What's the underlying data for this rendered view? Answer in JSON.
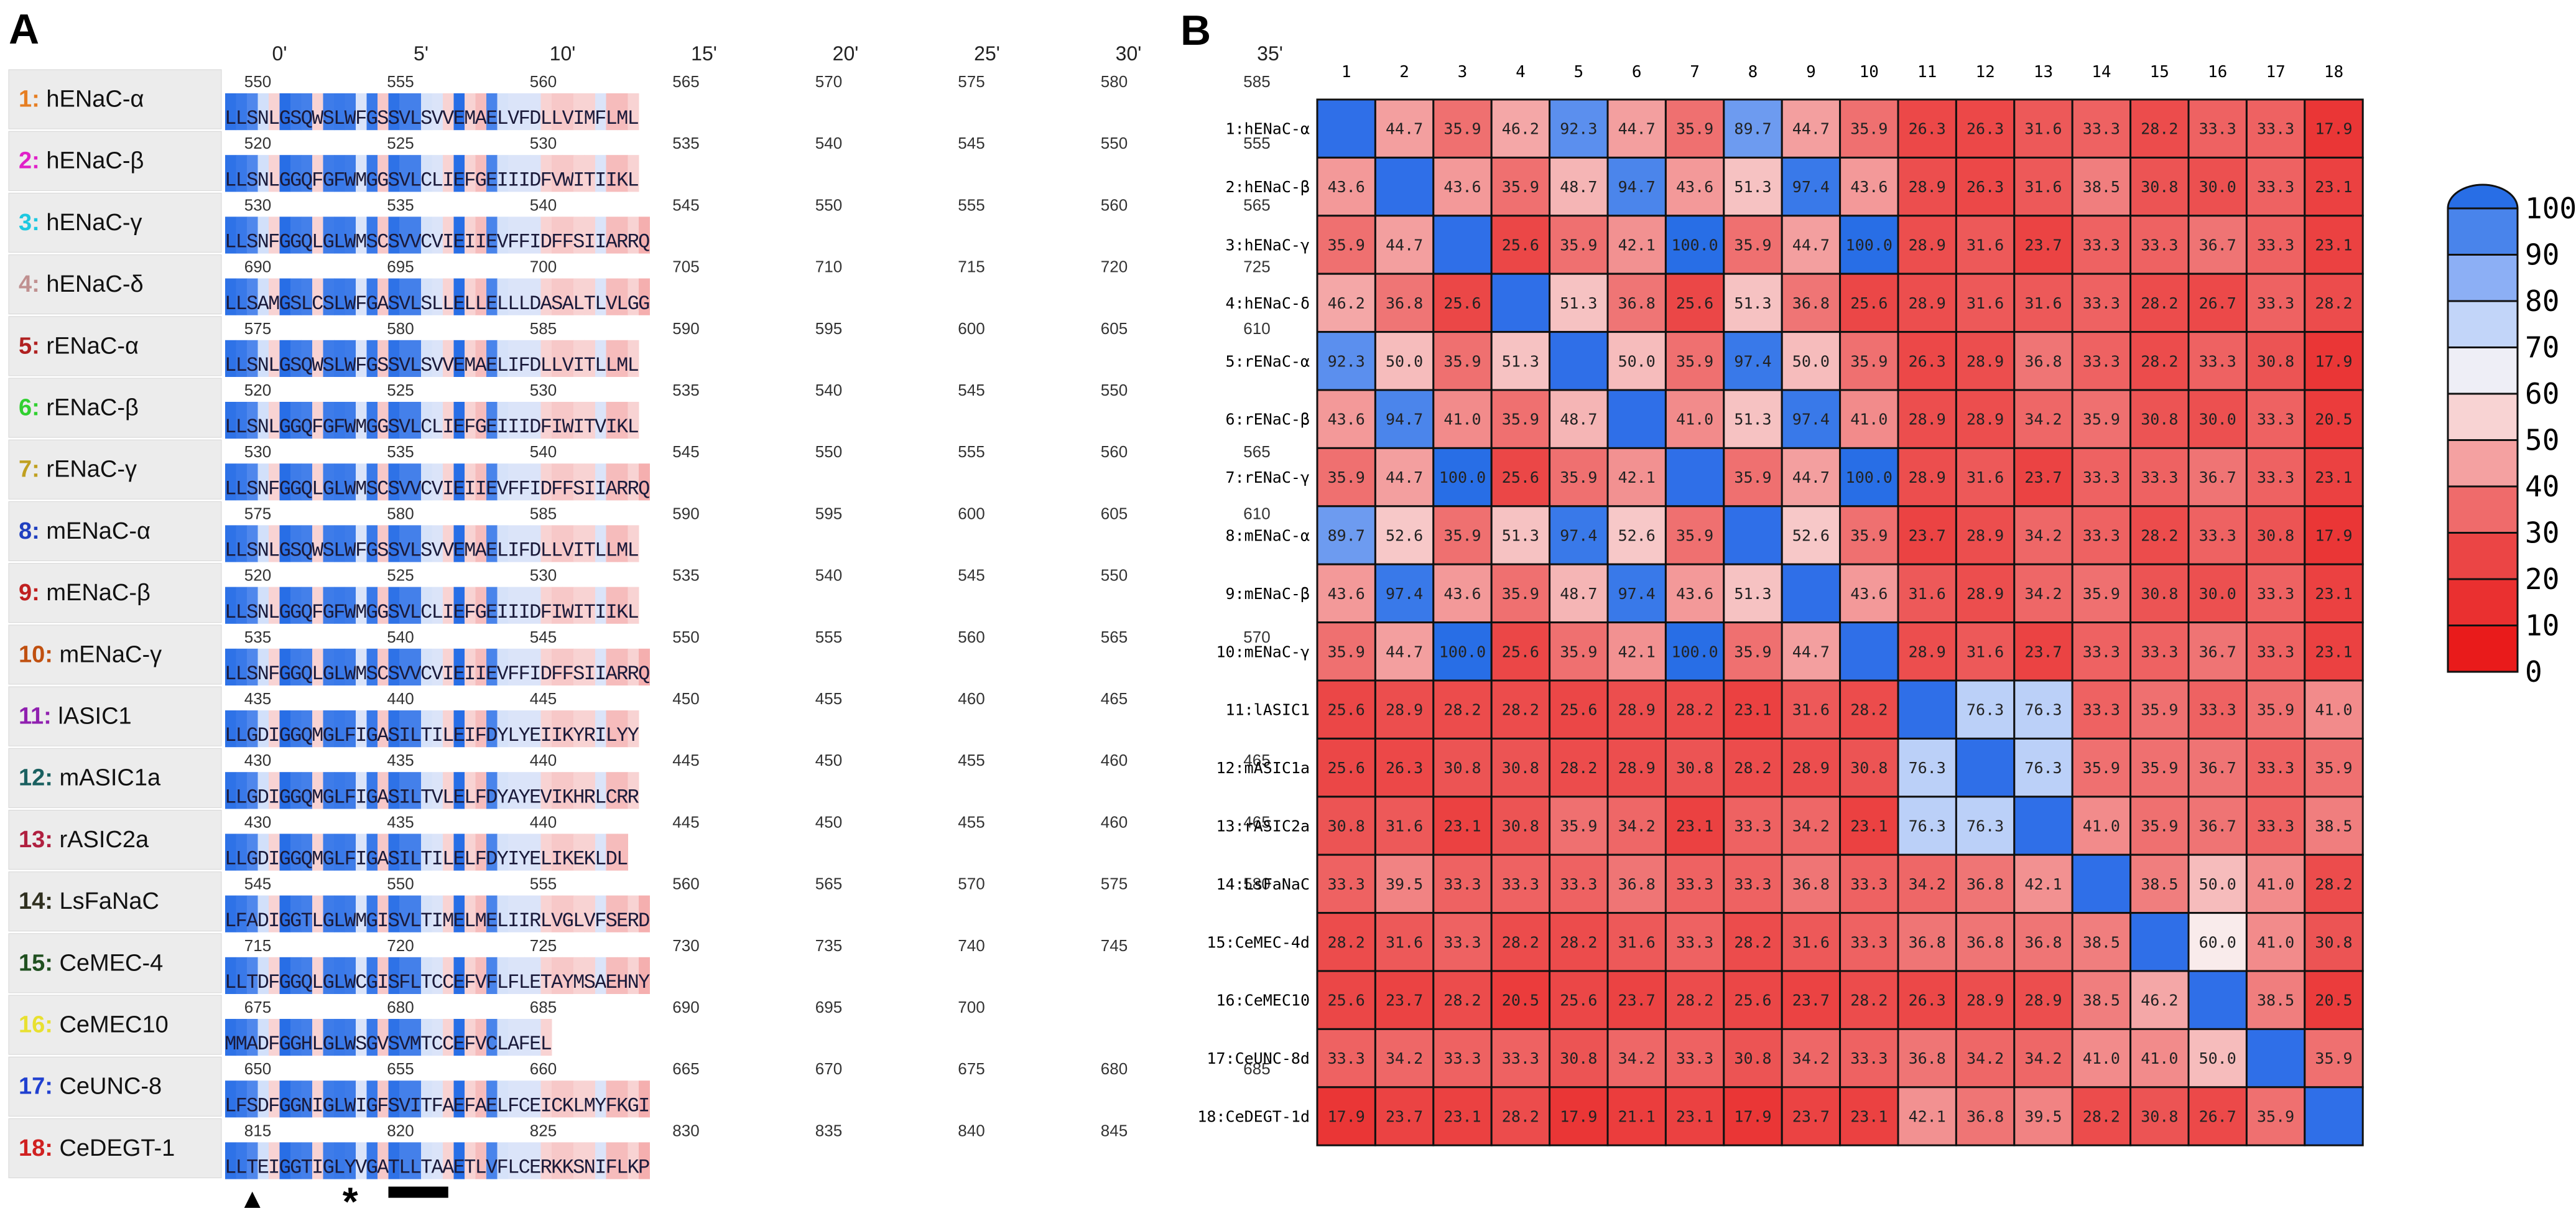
{
  "panel_a": {
    "label": "A",
    "positions": [
      "0'",
      "5'",
      "10'",
      "15'",
      "20'",
      "25'",
      "30'",
      "35'"
    ],
    "proteins": [
      {
        "num": "1:",
        "name": "hENaC-α",
        "color": "#e67e22",
        "seq": "LLSNLGSQWSLWFGSSVLSVVEMAELVFDLLVIMFLML",
        "nums": [
          "550",
          "555",
          "560",
          "565",
          "570",
          "575",
          "580",
          "585"
        ]
      },
      {
        "num": "2:",
        "name": "hENaC-β",
        "color": "#e020c8",
        "seq": "LLSNLGGQFGFWMGGSVLCLIEFGEIIIDFVWITIIKL",
        "nums": [
          "520",
          "525",
          "530",
          "535",
          "540",
          "545",
          "550",
          "555"
        ]
      },
      {
        "num": "3:",
        "name": "hENaC-γ",
        "color": "#1ec8e0",
        "seq": "LLSNFGGQLGLWMSCSVVCVIEIIEVFFIDFFSIIARRQ",
        "nums": [
          "530",
          "535",
          "540",
          "545",
          "550",
          "555",
          "560",
          "565"
        ]
      },
      {
        "num": "4:",
        "name": "hENaC-δ",
        "color": "#c09090",
        "seq": "LLSAMGSLCSLWFGASVLSLLELLELLLDASALTLVLGG",
        "nums": [
          "690",
          "695",
          "700",
          "705",
          "710",
          "715",
          "720",
          "725"
        ]
      },
      {
        "num": "5:",
        "name": "rENaC-α",
        "color": "#b02020",
        "seq": "LLSNLGSQWSLWFGSSVLSVVEMAELIFDLLVITLLML",
        "nums": [
          "575",
          "580",
          "585",
          "590",
          "595",
          "600",
          "605",
          "610"
        ]
      },
      {
        "num": "6:",
        "name": "rENaC-β",
        "color": "#30d030",
        "seq": "LLSNLGGQFGFWMGGSVLCLIEFGEIIIDFIWITVIKL",
        "nums": [
          "520",
          "525",
          "530",
          "535",
          "540",
          "545",
          "550"
        ]
      },
      {
        "num": "7:",
        "name": "rENaC-γ",
        "color": "#c0a020",
        "seq": "LLSNFGGQLGLWMSCSVVCVIEIIEVFFIDFFSIIARRQ",
        "nums": [
          "530",
          "535",
          "540",
          "545",
          "550",
          "555",
          "560",
          "565"
        ]
      },
      {
        "num": "8:",
        "name": "mENaC-α",
        "color": "#2040c0",
        "seq": "LLSNLGSQWSLWFGSSVLSVVEMAELIFDLLVITLLML",
        "nums": [
          "575",
          "580",
          "585",
          "590",
          "595",
          "600",
          "605",
          "610"
        ]
      },
      {
        "num": "9:",
        "name": "mENaC-β",
        "color": "#c02020",
        "seq": "LLSNLGGQFGFWMGGSVLCLIEFGEIIIDFIWITIIKL",
        "nums": [
          "520",
          "525",
          "530",
          "535",
          "540",
          "545",
          "550"
        ]
      },
      {
        "num": "10:",
        "name": "mENaC-γ",
        "color": "#c05010",
        "seq": "LLSNFGGQLGLWMSCSVVCVIEIIEVFFIDFFSIIARRQ",
        "nums": [
          "535",
          "540",
          "545",
          "550",
          "555",
          "560",
          "565",
          "570"
        ]
      },
      {
        "num": "11:",
        "name": "lASIC1",
        "color": "#9020b0",
        "seq": "LLGDIGGQMGLFIGASILTILEIFDYLYEIIKYRILYY",
        "nums": [
          "435",
          "440",
          "445",
          "450",
          "455",
          "460",
          "465"
        ]
      },
      {
        "num": "12:",
        "name": "mASIC1a",
        "color": "#1a6060",
        "seq": "LLGDIGGQMGLFIGASILTVLELFDYAYEVIKHRLCRR",
        "nums": [
          "430",
          "435",
          "440",
          "445",
          "450",
          "455",
          "460",
          "465"
        ]
      },
      {
        "num": "13:",
        "name": "rASIC2a",
        "color": "#b02040",
        "seq": "LLGDIGGQMGLFIGASILTILELFDYIYELIKEKLDL",
        "nums": [
          "430",
          "435",
          "440",
          "445",
          "450",
          "455",
          "460",
          "465"
        ]
      },
      {
        "num": "14:",
        "name": "LsFaNaC",
        "color": "#303020",
        "seq": "LFADIGGTLGLWMGISVLTIMELMELIIRLVGLVFSERD",
        "nums": [
          "545",
          "550",
          "555",
          "560",
          "565",
          "570",
          "575",
          "580"
        ]
      },
      {
        "num": "15:",
        "name": "CeMEC-4",
        "color": "#205020",
        "seq": "LLTDFGGQLGLWCGISFLTCCEFVFLFLETAYMSAEHNY",
        "nums": [
          "715",
          "720",
          "725",
          "730",
          "735",
          "740",
          "745"
        ]
      },
      {
        "num": "16:",
        "name": "CeMEC10",
        "color": "#e8e030",
        "seq": "MMADFGGHLGLWSGVSVMTCCEFVCLAFEL",
        "nums": [
          "675",
          "680",
          "685",
          "690",
          "695",
          "700"
        ]
      },
      {
        "num": "17:",
        "name": "CeUNC-8",
        "color": "#2040d0",
        "seq": "LFSDFGGNIGLWIGFSVITFAEFAELFCEICKLMYFKGI",
        "nums": [
          "650",
          "655",
          "660",
          "665",
          "670",
          "675",
          "680",
          "685"
        ]
      },
      {
        "num": "18:",
        "name": "CeDEGT-1",
        "color": "#d02020",
        "seq": "LLTEIGGTIGLYVGATLLTAAETLVFLCERKKSNIFLKP",
        "nums": [
          "815",
          "820",
          "825",
          "830",
          "835",
          "840",
          "845"
        ]
      }
    ],
    "markers": {
      "triangle": "▲",
      "star": "*"
    }
  },
  "panel_b": {
    "label": "B",
    "col_labels": [
      "1",
      "2",
      "3",
      "4",
      "5",
      "6",
      "7",
      "8",
      "9",
      "10",
      "11",
      "12",
      "13",
      "14",
      "15",
      "16",
      "17",
      "18"
    ],
    "row_labels": [
      "1:hENaC-α",
      "2:hENaC-β",
      "3:hENaC-γ",
      "4:hENaC-δ",
      "5:rENaC-α",
      "6:rENaC-β",
      "7:rENaC-γ",
      "8:mENaC-α",
      "9:mENaC-β",
      "10:mENaC-γ",
      "11:lASIC1",
      "12:mASIC1a",
      "13:rASIC2a",
      "14:LsFaNaC",
      "15:CeMEC-4d",
      "16:CeMEC10",
      "17:CeUNC-8d",
      "18:CeDEGT-1d"
    ],
    "matrix": [
      [
        null,
        "44.7",
        "35.9",
        "46.2",
        "92.3",
        "44.7",
        "35.9",
        "89.7",
        "44.7",
        "35.9",
        "26.3",
        "26.3",
        "31.6",
        "33.3",
        "28.2",
        "33.3",
        "33.3",
        "17.9"
      ],
      [
        "43.6",
        null,
        "43.6",
        "35.9",
        "48.7",
        "94.7",
        "43.6",
        "51.3",
        "97.4",
        "43.6",
        "28.9",
        "26.3",
        "31.6",
        "38.5",
        "30.8",
        "30.0",
        "33.3",
        "23.1"
      ],
      [
        "35.9",
        "44.7",
        null,
        "25.6",
        "35.9",
        "42.1",
        "100.0",
        "35.9",
        "44.7",
        "100.0",
        "28.9",
        "31.6",
        "23.7",
        "33.3",
        "33.3",
        "36.7",
        "33.3",
        "23.1"
      ],
      [
        "46.2",
        "36.8",
        "25.6",
        null,
        "51.3",
        "36.8",
        "25.6",
        "51.3",
        "36.8",
        "25.6",
        "28.9",
        "31.6",
        "31.6",
        "33.3",
        "28.2",
        "26.7",
        "33.3",
        "28.2"
      ],
      [
        "92.3",
        "50.0",
        "35.9",
        "51.3",
        null,
        "50.0",
        "35.9",
        "97.4",
        "50.0",
        "35.9",
        "26.3",
        "28.9",
        "36.8",
        "33.3",
        "28.2",
        "33.3",
        "30.8",
        "17.9"
      ],
      [
        "43.6",
        "94.7",
        "41.0",
        "35.9",
        "48.7",
        null,
        "41.0",
        "51.3",
        "97.4",
        "41.0",
        "28.9",
        "28.9",
        "34.2",
        "35.9",
        "30.8",
        "30.0",
        "33.3",
        "20.5"
      ],
      [
        "35.9",
        "44.7",
        "100.0",
        "25.6",
        "35.9",
        "42.1",
        null,
        "35.9",
        "44.7",
        "100.0",
        "28.9",
        "31.6",
        "23.7",
        "33.3",
        "33.3",
        "36.7",
        "33.3",
        "23.1"
      ],
      [
        "89.7",
        "52.6",
        "35.9",
        "51.3",
        "97.4",
        "52.6",
        "35.9",
        null,
        "52.6",
        "35.9",
        "23.7",
        "28.9",
        "34.2",
        "33.3",
        "28.2",
        "33.3",
        "30.8",
        "17.9"
      ],
      [
        "43.6",
        "97.4",
        "43.6",
        "35.9",
        "48.7",
        "97.4",
        "43.6",
        "51.3",
        null,
        "43.6",
        "31.6",
        "28.9",
        "34.2",
        "35.9",
        "30.8",
        "30.0",
        "33.3",
        "23.1"
      ],
      [
        "35.9",
        "44.7",
        "100.0",
        "25.6",
        "35.9",
        "42.1",
        "100.0",
        "35.9",
        "44.7",
        null,
        "28.9",
        "31.6",
        "23.7",
        "33.3",
        "33.3",
        "36.7",
        "33.3",
        "23.1"
      ],
      [
        "25.6",
        "28.9",
        "28.2",
        "28.2",
        "25.6",
        "28.9",
        "28.2",
        "23.1",
        "31.6",
        "28.2",
        null,
        "76.3",
        "76.3",
        "33.3",
        "35.9",
        "33.3",
        "35.9",
        "41.0"
      ],
      [
        "25.6",
        "26.3",
        "30.8",
        "30.8",
        "28.2",
        "28.9",
        "30.8",
        "28.2",
        "28.9",
        "30.8",
        "76.3",
        null,
        "76.3",
        "35.9",
        "35.9",
        "36.7",
        "33.3",
        "35.9"
      ],
      [
        "30.8",
        "31.6",
        "23.1",
        "30.8",
        "35.9",
        "34.2",
        "23.1",
        "33.3",
        "34.2",
        "23.1",
        "76.3",
        "76.3",
        null,
        "41.0",
        "35.9",
        "36.7",
        "33.3",
        "38.5"
      ],
      [
        "33.3",
        "39.5",
        "33.3",
        "33.3",
        "33.3",
        "36.8",
        "33.3",
        "33.3",
        "36.8",
        "33.3",
        "34.2",
        "36.8",
        "42.1",
        null,
        "38.5",
        "50.0",
        "41.0",
        "28.2"
      ],
      [
        "28.2",
        "31.6",
        "33.3",
        "28.2",
        "28.2",
        "31.6",
        "33.3",
        "28.2",
        "31.6",
        "33.3",
        "36.8",
        "36.8",
        "36.8",
        "38.5",
        null,
        "60.0",
        "41.0",
        "30.8"
      ],
      [
        "25.6",
        "23.7",
        "28.2",
        "20.5",
        "25.6",
        "23.7",
        "28.2",
        "25.6",
        "23.7",
        "28.2",
        "26.3",
        "28.9",
        "28.9",
        "38.5",
        "46.2",
        null,
        "38.5",
        "20.5"
      ],
      [
        "33.3",
        "34.2",
        "33.3",
        "33.3",
        "30.8",
        "34.2",
        "33.3",
        "30.8",
        "34.2",
        "33.3",
        "36.8",
        "34.2",
        "34.2",
        "41.0",
        "41.0",
        "50.0",
        null,
        "35.9"
      ],
      [
        "17.9",
        "23.7",
        "23.1",
        "28.2",
        "17.9",
        "21.1",
        "23.1",
        "17.9",
        "23.7",
        "23.1",
        "42.1",
        "36.8",
        "39.5",
        "28.2",
        "30.8",
        "26.7",
        "35.9",
        null
      ]
    ],
    "colorbar_ticks": [
      "100",
      "90",
      "80",
      "70",
      "60",
      "50",
      "40",
      "30",
      "20",
      "10",
      "0"
    ]
  }
}
